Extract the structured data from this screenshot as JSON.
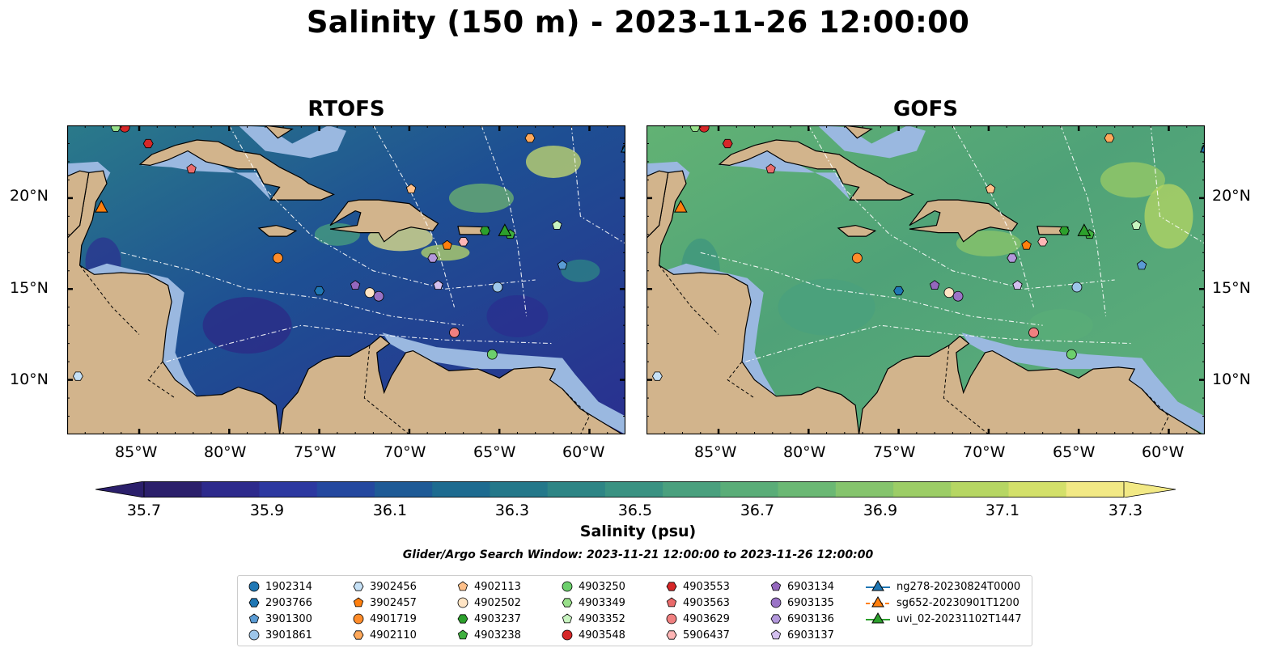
{
  "title": "Salinity (150 m) - 2023-11-26 12:00:00",
  "panels": [
    {
      "title": "RTOFS"
    },
    {
      "title": "GOFS"
    }
  ],
  "axes": {
    "lat_labels": [
      "20°N",
      "15°N",
      "10°N"
    ],
    "lat_values": [
      20,
      15,
      10
    ],
    "lon_labels": [
      "85°W",
      "80°W",
      "75°W",
      "70°W",
      "65°W",
      "60°W"
    ],
    "lon_values": [
      -85,
      -80,
      -75,
      -70,
      -65,
      -60
    ],
    "lon_range": [
      -89,
      -58
    ],
    "lat_range": [
      7,
      24
    ]
  },
  "colorbar": {
    "label": "Salinity (psu)",
    "ticks": [
      "35.7",
      "35.9",
      "36.1",
      "36.3",
      "36.5",
      "36.7",
      "36.9",
      "37.1",
      "37.3"
    ],
    "range": [
      35.6,
      37.4
    ],
    "colors": [
      "#2b1f6b",
      "#2d2a8c",
      "#2c38a0",
      "#24489f",
      "#1e5a96",
      "#1d6b90",
      "#24788a",
      "#2e8585",
      "#3a9282",
      "#4aa07e",
      "#5aad78",
      "#6bb874",
      "#85c46d",
      "#9ccd66",
      "#b6d663",
      "#d3e06a",
      "#f2e985"
    ]
  },
  "search_window": "Glider/Argo Search Window: 2023-11-21 12:00:00 to 2023-11-26 12:00:00",
  "colors": {
    "land": "#d2b48c",
    "shelf": "#9ab8e0",
    "rtofs_sea": "#1d5a94",
    "gofs_sea": "#55a67a"
  },
  "platforms": [
    {
      "id": "1902314",
      "marker": "circle",
      "color": "#1f77b4",
      "lon": -57.9,
      "lat": 22.7
    },
    {
      "id": "2903766",
      "marker": "hexagon",
      "color": "#1f77b4",
      "lon": -75.0,
      "lat": 14.9
    },
    {
      "id": "3901300",
      "marker": "pentagon",
      "color": "#5a9bd4",
      "lon": -61.5,
      "lat": 16.3
    },
    {
      "id": "3901861",
      "marker": "circle",
      "color": "#9dc6ea",
      "lon": -65.1,
      "lat": 15.1
    },
    {
      "id": "3902456",
      "marker": "hexagon",
      "color": "#c6e1f6",
      "lon": -88.4,
      "lat": 10.2
    },
    {
      "id": "3902457",
      "marker": "pentagon",
      "color": "#ff7f0e",
      "lon": -67.9,
      "lat": 17.4
    },
    {
      "id": "4901719",
      "marker": "circle",
      "color": "#ff8c2a",
      "lon": -77.3,
      "lat": 16.7
    },
    {
      "id": "4902110",
      "marker": "hexagon",
      "color": "#ffa85a",
      "lon": -63.3,
      "lat": 23.3
    },
    {
      "id": "4902113",
      "marker": "pentagon",
      "color": "#ffc08a",
      "lon": -69.9,
      "lat": 20.5
    },
    {
      "id": "4902502",
      "marker": "circle",
      "color": "#ffe4c4",
      "lon": -72.2,
      "lat": 14.8
    },
    {
      "id": "4903237",
      "marker": "hexagon",
      "color": "#2ca02c",
      "lon": -65.8,
      "lat": 18.2
    },
    {
      "id": "4903238",
      "marker": "pentagon",
      "color": "#3fb03f",
      "lon": -64.4,
      "lat": 18.0
    },
    {
      "id": "4903250",
      "marker": "circle",
      "color": "#6ccf6c",
      "lon": -65.4,
      "lat": 11.4
    },
    {
      "id": "4903349",
      "marker": "hexagon",
      "color": "#98df8a",
      "lon": -86.3,
      "lat": 23.9
    },
    {
      "id": "4903352",
      "marker": "pentagon",
      "color": "#c8f4c0",
      "lon": -61.8,
      "lat": 18.5
    },
    {
      "id": "4903548",
      "marker": "circle",
      "color": "#d62728",
      "lon": -85.8,
      "lat": 23.9
    },
    {
      "id": "4903553",
      "marker": "hexagon",
      "color": "#d62728",
      "lon": -84.5,
      "lat": 23.0
    },
    {
      "id": "4903563",
      "marker": "pentagon",
      "color": "#ea6b6b",
      "lon": -82.1,
      "lat": 21.6
    },
    {
      "id": "4903629",
      "marker": "circle",
      "color": "#f08080",
      "lon": -67.5,
      "lat": 12.6
    },
    {
      "id": "5906437",
      "marker": "hexagon",
      "color": "#ffb6b6",
      "lon": -67.0,
      "lat": 17.6
    },
    {
      "id": "6903134",
      "marker": "pentagon",
      "color": "#9467bd",
      "lon": -73.0,
      "lat": 15.2
    },
    {
      "id": "6903135",
      "marker": "circle",
      "color": "#9a73c6",
      "lon": -71.7,
      "lat": 14.6
    },
    {
      "id": "6903136",
      "marker": "hexagon",
      "color": "#b398dc",
      "lon": -68.7,
      "lat": 16.7
    },
    {
      "id": "6903137",
      "marker": "pentagon",
      "color": "#d4c0ef",
      "lon": -68.4,
      "lat": 15.2
    }
  ],
  "gliders": [
    {
      "id": "ng278-20230824T0000",
      "color": "#1f77b4",
      "lon": -57.9,
      "lat": 22.8
    },
    {
      "id": "sg652-20230901T1200",
      "color": "#ff7f0e",
      "lon": -87.1,
      "lat": 19.5
    },
    {
      "id": "uvi_02-20231102T1447",
      "color": "#2ca02c",
      "lon": -64.7,
      "lat": 18.2
    }
  ]
}
